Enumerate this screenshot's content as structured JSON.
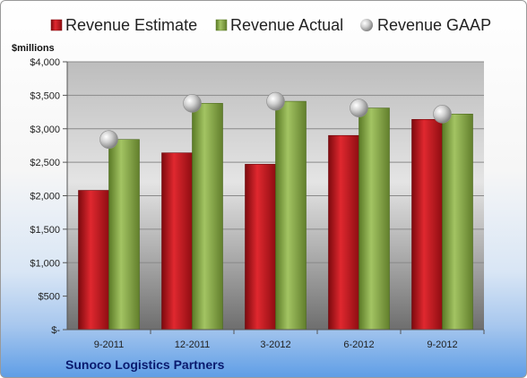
{
  "colors": {
    "estimate": "#c0181e",
    "actual": "#86a544",
    "gaap": "#b9b9b9",
    "company": "#0a1a6e"
  },
  "chart_data": {
    "type": "bar",
    "unit_label": "$millions",
    "categories": [
      "9-2011",
      "12-2011",
      "3-2012",
      "6-2012",
      "9-2012"
    ],
    "series": [
      {
        "name": "Revenue Estimate",
        "kind": "bar",
        "values": [
          2080,
          2640,
          2470,
          2900,
          3140
        ]
      },
      {
        "name": "Revenue Actual",
        "kind": "bar",
        "values": [
          2840,
          3380,
          3410,
          3310,
          3220
        ]
      },
      {
        "name": "Revenue GAAP",
        "kind": "marker",
        "values": [
          2840,
          3380,
          3410,
          3310,
          3220
        ]
      }
    ],
    "ylim": [
      0,
      4000
    ],
    "yticks": [
      {
        "value": 0,
        "label": "$-"
      },
      {
        "value": 500,
        "label": "$500"
      },
      {
        "value": 1000,
        "label": "$1,000"
      },
      {
        "value": 1500,
        "label": "$1,500"
      },
      {
        "value": 2000,
        "label": "$2,000"
      },
      {
        "value": 2500,
        "label": "$2,500"
      },
      {
        "value": 3000,
        "label": "$3,000"
      },
      {
        "value": 3500,
        "label": "$3,500"
      },
      {
        "value": 4000,
        "label": "$4,000"
      }
    ],
    "grid": true,
    "legend_position": "top",
    "footer": "Sunoco Logistics Partners"
  }
}
